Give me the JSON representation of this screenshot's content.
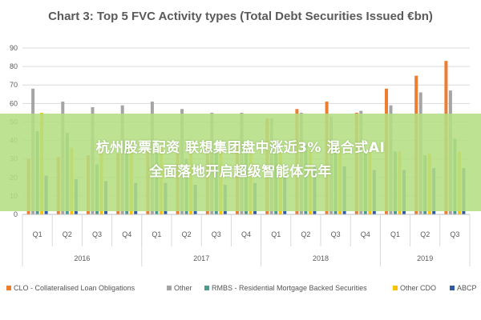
{
  "chart_data": {
    "type": "bar",
    "title": "Chart 3: Top 5 FVC Activity types (Total Debt Securities Issued €bn)",
    "ylim": [
      0,
      90
    ],
    "yticks": [
      0,
      10,
      20,
      30,
      40,
      50,
      60,
      70,
      80,
      90
    ],
    "grid": true,
    "legend_position": "bottom",
    "categories": [
      "Q1",
      "Q2",
      "Q3",
      "Q4",
      "Q1",
      "Q2",
      "Q3",
      "Q4",
      "Q1",
      "Q2",
      "Q3",
      "Q4",
      "Q1",
      "Q2",
      "Q3"
    ],
    "groups": [
      {
        "label": "2016",
        "count": 4
      },
      {
        "label": "2017",
        "count": 4
      },
      {
        "label": "2018",
        "count": 4
      },
      {
        "label": "2019",
        "count": 3
      }
    ],
    "series": [
      {
        "name": "CLO - Collateralised Loan Obligations",
        "color": "#ed7d31",
        "values": [
          30,
          31,
          32,
          33,
          35,
          36,
          36,
          40,
          52,
          57,
          61,
          55,
          68,
          75,
          83
        ]
      },
      {
        "name": "Other",
        "color": "#a5a5a5",
        "values": [
          68,
          61,
          58,
          59,
          61,
          57,
          55,
          55,
          52,
          55,
          53,
          56,
          59,
          66,
          67
        ]
      },
      {
        "name": "RMBS - Residential Mortgage Backed Securities",
        "color": "#4e9a8f",
        "values": [
          45,
          44,
          27,
          38,
          38,
          30,
          38,
          35,
          38,
          38,
          35,
          34,
          34,
          32,
          41
        ]
      },
      {
        "name": "Other CDO",
        "color": "#ffc000",
        "values": [
          55,
          36,
          35,
          36,
          37,
          35,
          36,
          35,
          34,
          35,
          36,
          34,
          34,
          33,
          34
        ]
      },
      {
        "name": "ABCP",
        "color": "#2f5aa8",
        "values": [
          21,
          19,
          18,
          17,
          17,
          16,
          16,
          17,
          20,
          26,
          26,
          24,
          24,
          25,
          25
        ]
      }
    ]
  },
  "banner": {
    "line1": "杭州股票配资 联想集团盘中涨近3% 混合式AI",
    "line2": "全面落地开启超级智能体元年"
  }
}
